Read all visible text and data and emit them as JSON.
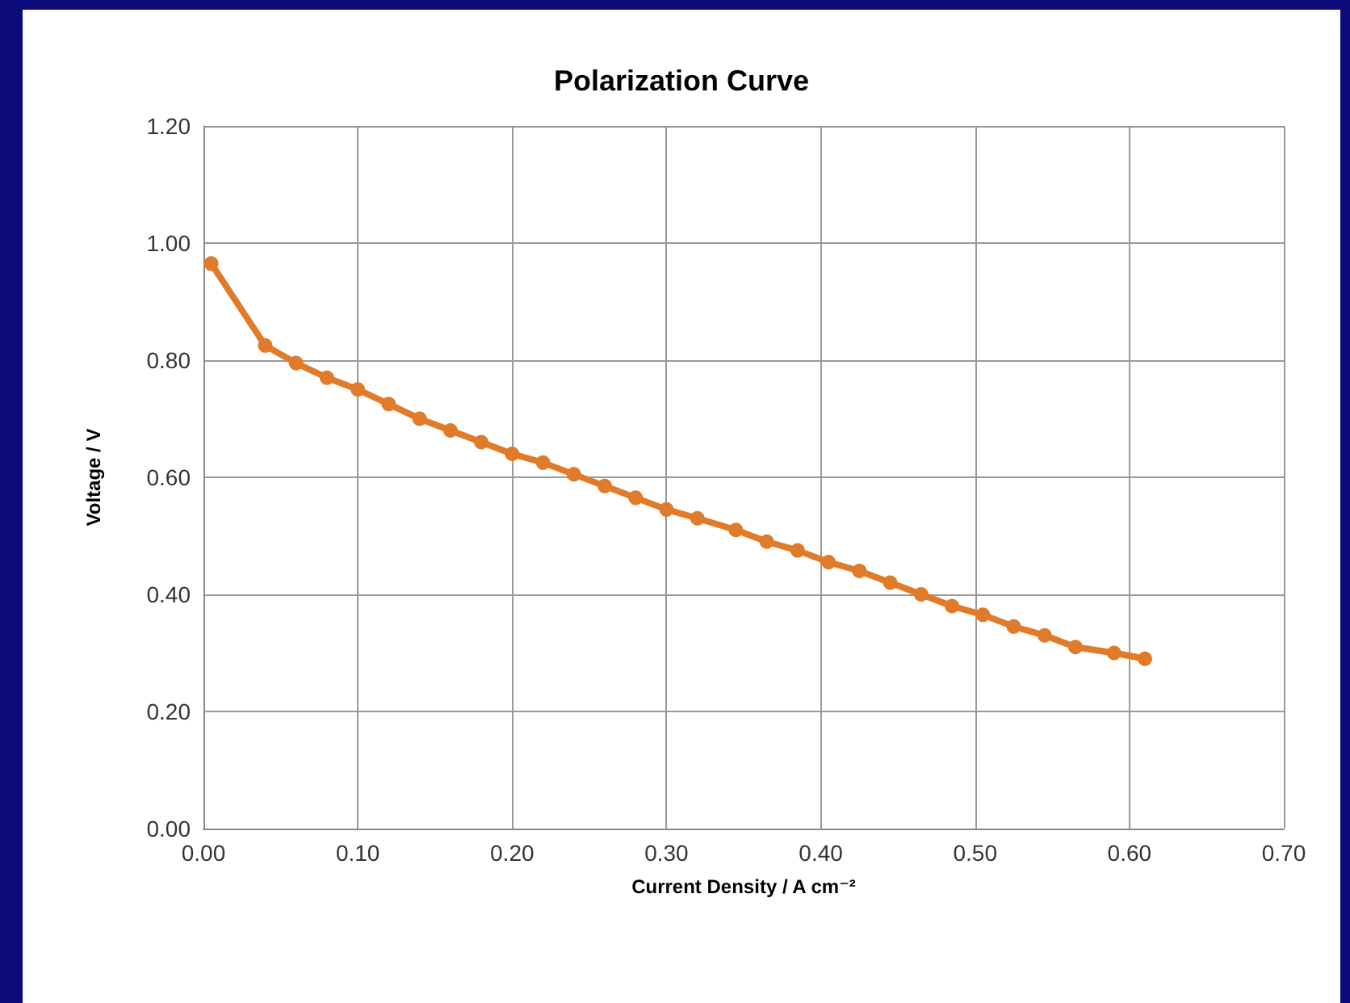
{
  "chart_data": {
    "type": "line",
    "title": "Polarization Curve",
    "xlabel": "Current Density / A cm⁻²",
    "ylabel": "Voltage / V",
    "x": [
      0.005,
      0.04,
      0.06,
      0.08,
      0.1,
      0.12,
      0.14,
      0.16,
      0.18,
      0.2,
      0.22,
      0.24,
      0.26,
      0.28,
      0.3,
      0.32,
      0.345,
      0.365,
      0.385,
      0.405,
      0.425,
      0.445,
      0.465,
      0.485,
      0.505,
      0.525,
      0.545,
      0.565,
      0.59,
      0.61
    ],
    "series": [
      {
        "color": "#e07b2a",
        "values": [
          0.965,
          0.825,
          0.795,
          0.77,
          0.75,
          0.725,
          0.7,
          0.68,
          0.66,
          0.64,
          0.625,
          0.605,
          0.585,
          0.565,
          0.545,
          0.53,
          0.51,
          0.49,
          0.475,
          0.455,
          0.44,
          0.42,
          0.4,
          0.38,
          0.365,
          0.345,
          0.33,
          0.31,
          0.3,
          0.29
        ]
      }
    ],
    "xlim": [
      0,
      0.7
    ],
    "xticks": [
      {
        "value": 0,
        "label": "0.00"
      },
      {
        "value": 0.1,
        "label": "0.10"
      },
      {
        "value": 0.2,
        "label": "0.20"
      },
      {
        "value": 0.3,
        "label": "0.30"
      },
      {
        "value": 0.4,
        "label": "0.40"
      },
      {
        "value": 0.5,
        "label": "0.50"
      },
      {
        "value": 0.6,
        "label": "0.60"
      },
      {
        "value": 0.7,
        "label": "0.70"
      }
    ],
    "ylim": [
      0,
      1.2
    ],
    "yticks": [
      {
        "value": 0,
        "label": "0.00"
      },
      {
        "value": 0.2,
        "label": "0.20"
      },
      {
        "value": 0.4,
        "label": "0.40"
      },
      {
        "value": 0.6,
        "label": "0.60"
      },
      {
        "value": 0.8,
        "label": "0.80"
      },
      {
        "value": 1,
        "label": "1.00"
      },
      {
        "value": 1.2,
        "label": "1.20"
      }
    ],
    "grid": true,
    "marker": "circle",
    "line_style": "solid",
    "legend": false
  }
}
